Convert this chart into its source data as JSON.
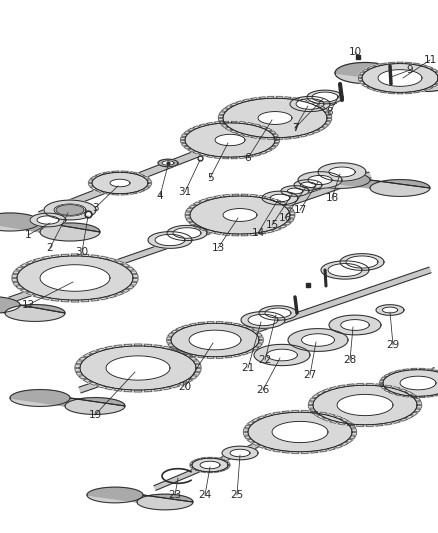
{
  "bg_color": "#ffffff",
  "fig_width": 4.38,
  "fig_height": 5.33,
  "dpi": 100,
  "dark": "#2a2a2a",
  "gray_light": "#d8d8d8",
  "gray_mid": "#aaaaaa",
  "gray_dark": "#666666",
  "shaft_fill": "#cccccc",
  "shaft_edge": "#444444"
}
